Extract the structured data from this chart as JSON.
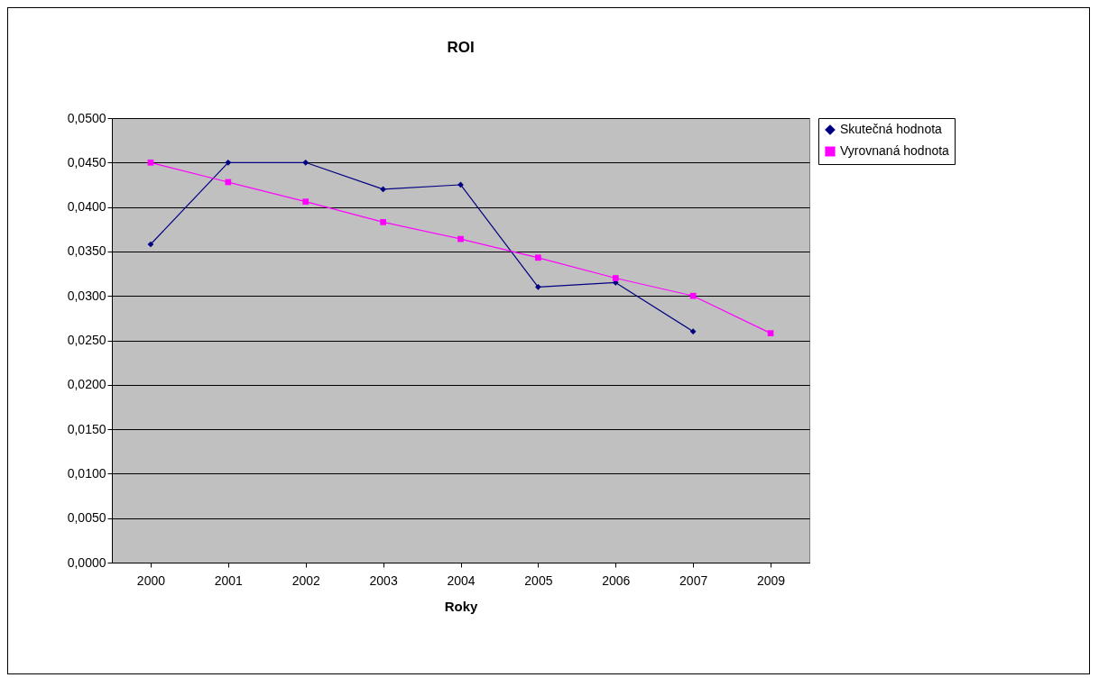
{
  "chart_data": {
    "type": "line",
    "title": "ROI",
    "xlabel": "Roky",
    "categories": [
      "2000",
      "2001",
      "2002",
      "2003",
      "2004",
      "2005",
      "2006",
      "2007",
      "2009"
    ],
    "series": [
      {
        "name": "Skutečná hodnota",
        "color": "#000080",
        "marker": "diamond",
        "values": [
          0.0358,
          0.045,
          0.045,
          0.042,
          0.0425,
          0.031,
          0.0315,
          0.026,
          null
        ]
      },
      {
        "name": "Vyrovnaná hodnota",
        "color": "#ff00ff",
        "marker": "square",
        "values": [
          0.045,
          0.0428,
          0.0406,
          0.0383,
          0.0364,
          0.0343,
          0.032,
          0.03,
          0.0258
        ]
      }
    ],
    "ylim": [
      0,
      0.05
    ],
    "yticks": [
      {
        "value": 0,
        "label": "0,0000"
      },
      {
        "value": 0.005,
        "label": "0,0050"
      },
      {
        "value": 0.01,
        "label": "0,0100"
      },
      {
        "value": 0.015,
        "label": "0,0150"
      },
      {
        "value": 0.02,
        "label": "0,0200"
      },
      {
        "value": 0.025,
        "label": "0,0250"
      },
      {
        "value": 0.03,
        "label": "0,0300"
      },
      {
        "value": 0.035,
        "label": "0,0350"
      },
      {
        "value": 0.04,
        "label": "0,0400"
      },
      {
        "value": 0.045,
        "label": "0,0450"
      },
      {
        "value": 0.05,
        "label": "0,0500"
      }
    ],
    "grid": "y",
    "legend": "right",
    "line_style": "solid"
  }
}
